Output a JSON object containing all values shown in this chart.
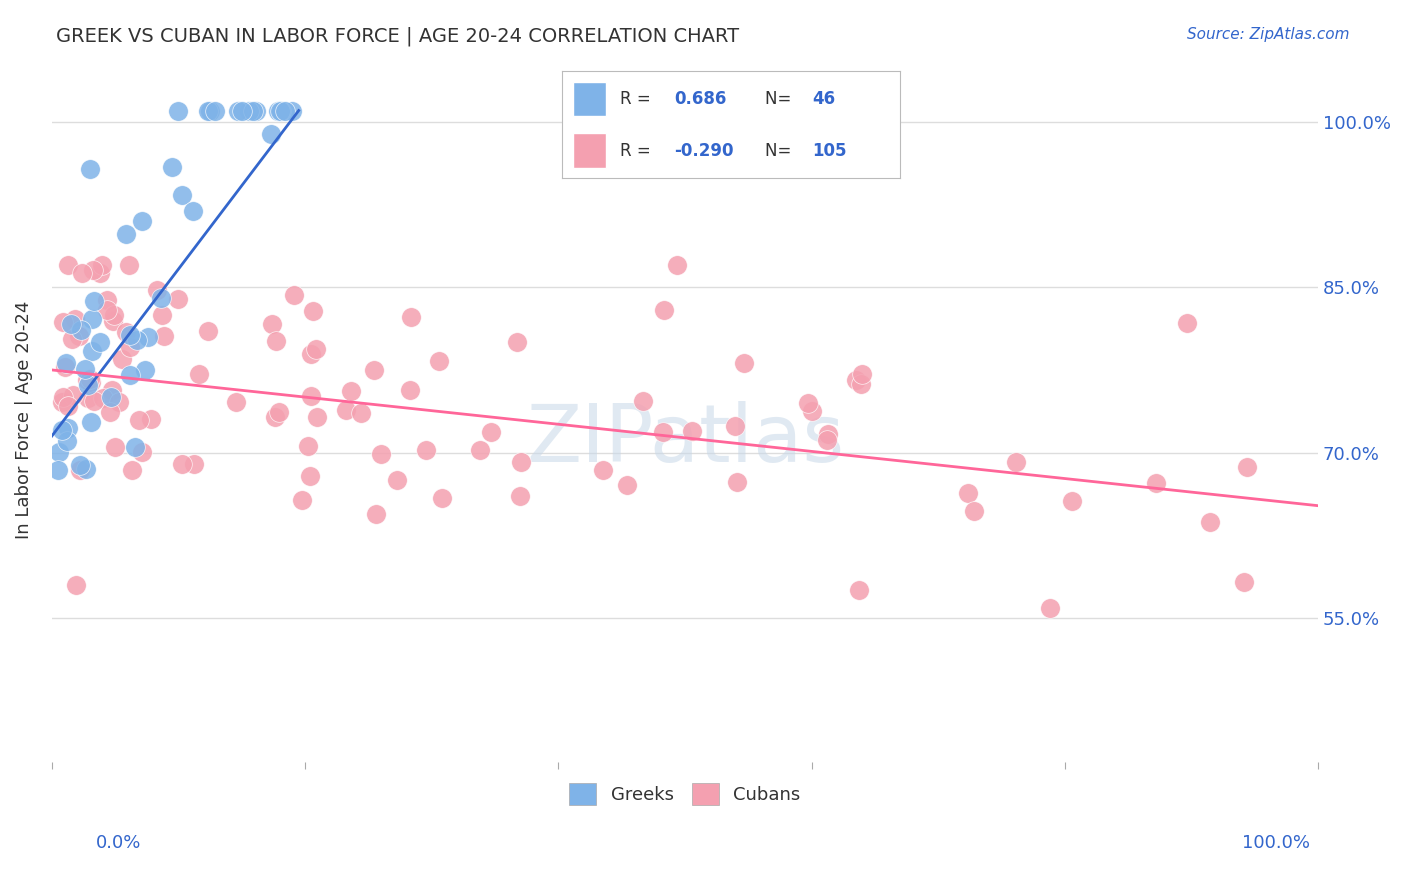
{
  "title": "GREEK VS CUBAN IN LABOR FORCE | AGE 20-24 CORRELATION CHART",
  "source": "Source: ZipAtlas.com",
  "ylabel": "In Labor Force | Age 20-24",
  "ytick_labels": [
    "55.0%",
    "70.0%",
    "85.0%",
    "100.0%"
  ],
  "ytick_values": [
    0.55,
    0.7,
    0.85,
    1.0
  ],
  "xlim": [
    0.0,
    1.0
  ],
  "ylim": [
    0.42,
    1.04
  ],
  "greek_color": "#7FB3E8",
  "cuban_color": "#F4A0B0",
  "greek_line_color": "#3366CC",
  "cuban_line_color": "#FF6699",
  "greek_R": 0.686,
  "greek_N": 46,
  "cuban_R": -0.29,
  "cuban_N": 105,
  "watermark": "ZIPatlas",
  "background_color": "#FFFFFF",
  "grid_color": "#DDDDDD",
  "greek_line_x": [
    0.0,
    0.195
  ],
  "greek_line_y": [
    0.715,
    1.01
  ],
  "cuban_line_x": [
    0.0,
    1.0
  ],
  "cuban_line_y": [
    0.775,
    0.652
  ]
}
